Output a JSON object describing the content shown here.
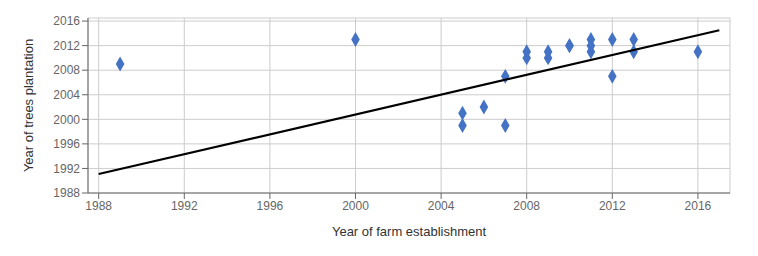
{
  "chart_data": {
    "type": "scatter",
    "xlabel": "Year of farm establishment",
    "ylabel": "Year of trees plantation",
    "xlim": [
      1987.5,
      2017.5
    ],
    "ylim": [
      1988,
      2016.5
    ],
    "xticks": [
      1988,
      1992,
      1996,
      2000,
      2004,
      2008,
      2012,
      2016
    ],
    "yticks": [
      1988,
      1992,
      1996,
      2000,
      2004,
      2008,
      2012,
      2016
    ],
    "grid": true,
    "series": [
      {
        "type": "scatter",
        "marker": "diamond",
        "color": "#4472C4",
        "x": [
          1989,
          2000,
          2005,
          2005,
          2006,
          2007,
          2007,
          2008,
          2008,
          2009,
          2009,
          2010,
          2010,
          2011,
          2011,
          2011,
          2012,
          2012,
          2013,
          2013,
          2016
        ],
        "values": [
          2009,
          2013,
          2001,
          1999,
          2002,
          1999,
          2007,
          2010,
          2011,
          2010,
          2011,
          2012,
          2012,
          2011,
          2013,
          2012,
          2013,
          2007,
          2011,
          2013,
          2011
        ]
      },
      {
        "type": "line",
        "color": "black",
        "x": [
          1988,
          2017
        ],
        "values": [
          1991.1,
          2014.5
        ]
      }
    ]
  }
}
